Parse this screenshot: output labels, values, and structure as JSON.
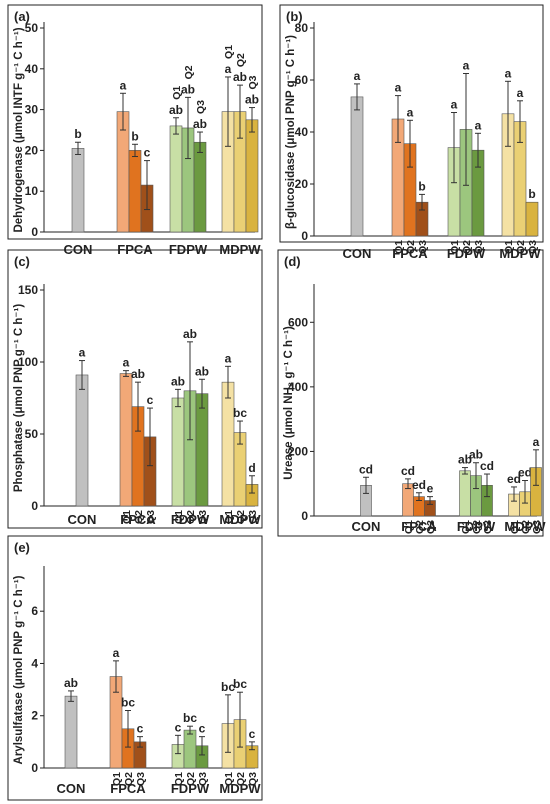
{
  "chart_data": [
    {
      "type": "bar",
      "panel_label": "(a)",
      "ylabel": "Dehydrogenase (μmol INTF g⁻¹ C h⁻¹)",
      "ylim": [
        0,
        50
      ],
      "yticks": [
        0,
        10,
        20,
        30,
        40,
        50
      ],
      "groups": [
        "CON",
        "FPCA",
        "FDPW",
        "MDPW"
      ],
      "quality_labels": [
        "Q1",
        "Q2",
        "Q3"
      ],
      "bars": [
        {
          "group": "CON",
          "level": "",
          "value": 20.5,
          "err": 1.5,
          "letter": "b",
          "color": "#c0c0c0"
        },
        {
          "group": "FPCA",
          "level": "Q1",
          "value": 29.5,
          "err": 4.5,
          "letter": "a",
          "color": "#f2a877"
        },
        {
          "group": "FPCA",
          "level": "Q2",
          "value": 20,
          "err": 1.5,
          "letter": "b",
          "color": "#e0731f"
        },
        {
          "group": "FPCA",
          "level": "Q3",
          "value": 11.5,
          "err": 6,
          "letter": "c",
          "color": "#a0501a"
        },
        {
          "group": "FDPW",
          "level": "Q1",
          "value": 26,
          "err": 2,
          "letter": "ab",
          "color": "#c8dfa5"
        },
        {
          "group": "FDPW",
          "level": "Q2",
          "value": 25.5,
          "err": 7.5,
          "letter": "ab",
          "color": "#9cc67e"
        },
        {
          "group": "FDPW",
          "level": "Q3",
          "value": 22,
          "err": 2.5,
          "letter": "ab",
          "color": "#6b9a40"
        },
        {
          "group": "MDPW",
          "level": "Q1",
          "value": 29.5,
          "err": 8.5,
          "letter": "a",
          "color": "#f4e1a4"
        },
        {
          "group": "MDPW",
          "level": "Q2",
          "value": 29.5,
          "err": 6.5,
          "letter": "ab",
          "color": "#ead074"
        },
        {
          "group": "MDPW",
          "level": "Q3",
          "value": 27.5,
          "err": 3,
          "letter": "ab",
          "color": "#d9b33f"
        }
      ]
    },
    {
      "type": "bar",
      "panel_label": "(b)",
      "ylabel": "β-glucosidase (μmol PNP g⁻¹ C h⁻¹)",
      "ylim": [
        0,
        80
      ],
      "yticks": [
        0,
        20,
        40,
        60,
        80
      ],
      "groups": [
        "CON",
        "FPCA",
        "FDPW",
        "MDPW"
      ],
      "quality_labels": [
        "Q1",
        "Q2",
        "Q3"
      ],
      "bars": [
        {
          "group": "CON",
          "level": "",
          "value": 53.5,
          "err": 5,
          "letter": "a",
          "color": "#c0c0c0"
        },
        {
          "group": "FPCA",
          "level": "Q1",
          "value": 45,
          "err": 9,
          "letter": "a",
          "color": "#f2a877"
        },
        {
          "group": "FPCA",
          "level": "Q2",
          "value": 35.5,
          "err": 9,
          "letter": "a",
          "color": "#e0731f"
        },
        {
          "group": "FPCA",
          "level": "Q3",
          "value": 13,
          "err": 3,
          "letter": "b",
          "color": "#a0501a"
        },
        {
          "group": "FDPW",
          "level": "Q1",
          "value": 34,
          "err": 13.5,
          "letter": "a",
          "color": "#c8dfa5"
        },
        {
          "group": "FDPW",
          "level": "Q2",
          "value": 41,
          "err": 21.5,
          "letter": "a",
          "color": "#9cc67e"
        },
        {
          "group": "FDPW",
          "level": "Q3",
          "value": 33,
          "err": 6.5,
          "letter": "a",
          "color": "#6b9a40"
        },
        {
          "group": "MDPW",
          "level": "Q1",
          "value": 47,
          "err": 12.5,
          "letter": "a",
          "color": "#f4e1a4"
        },
        {
          "group": "MDPW",
          "level": "Q2",
          "value": 44,
          "err": 8,
          "letter": "a",
          "color": "#ead074"
        },
        {
          "group": "MDPW",
          "level": "Q3",
          "value": 13,
          "err": 0,
          "letter": "b",
          "color": "#d9b33f"
        }
      ]
    },
    {
      "type": "bar",
      "panel_label": "(c)",
      "ylabel": "Phosphatase (μmol PNP g⁻¹ C h⁻¹)",
      "ylim": [
        0,
        150
      ],
      "yticks": [
        0,
        50,
        100,
        150
      ],
      "groups": [
        "CON",
        "FPCA",
        "FDPW",
        "MDPW"
      ],
      "quality_labels": [
        "Q1",
        "Q2",
        "Q3"
      ],
      "bars": [
        {
          "group": "CON",
          "level": "",
          "value": 91,
          "err": 10,
          "letter": "a",
          "color": "#c0c0c0"
        },
        {
          "group": "FPCA",
          "level": "Q1",
          "value": 92,
          "err": 2,
          "letter": "a",
          "color": "#f2a877"
        },
        {
          "group": "FPCA",
          "level": "Q2",
          "value": 69,
          "err": 17,
          "letter": "ab",
          "color": "#e0731f"
        },
        {
          "group": "FPCA",
          "level": "Q3",
          "value": 48,
          "err": 20,
          "letter": "c",
          "color": "#a0501a"
        },
        {
          "group": "FDPW",
          "level": "Q1",
          "value": 75,
          "err": 6,
          "letter": "ab",
          "color": "#c8dfa5"
        },
        {
          "group": "FDPW",
          "level": "Q2",
          "value": 80,
          "err": 34,
          "letter": "ab",
          "color": "#9cc67e"
        },
        {
          "group": "FDPW",
          "level": "Q3",
          "value": 78,
          "err": 10,
          "letter": "ab",
          "color": "#6b9a40"
        },
        {
          "group": "MDPW",
          "level": "Q1",
          "value": 86,
          "err": 11,
          "letter": "a",
          "color": "#f4e1a4"
        },
        {
          "group": "MDPW",
          "level": "Q2",
          "value": 51,
          "err": 8,
          "letter": "bc",
          "color": "#ead074"
        },
        {
          "group": "MDPW",
          "level": "Q3",
          "value": 15,
          "err": 6,
          "letter": "d",
          "color": "#d9b33f"
        }
      ]
    },
    {
      "type": "bar",
      "panel_label": "(d)",
      "ylabel": "Urease (μmol NH₃ g⁻¹ C h⁻¹)",
      "ylim": [
        0,
        700
      ],
      "yticks": [
        0,
        200,
        400,
        600
      ],
      "groups": [
        "CON",
        "FPCA",
        "FDPW",
        "MDPW"
      ],
      "quality_labels": [
        "Q1",
        "Q2",
        "Q3"
      ],
      "bars": [
        {
          "group": "CON",
          "level": "",
          "value": 95,
          "err": 25,
          "letter": "cd",
          "color": "#c0c0c0"
        },
        {
          "group": "FPCA",
          "level": "Q1",
          "value": 100,
          "err": 15,
          "letter": "cd",
          "color": "#f2a877"
        },
        {
          "group": "FPCA",
          "level": "Q2",
          "value": 60,
          "err": 12,
          "letter": "ed",
          "color": "#e0731f"
        },
        {
          "group": "FPCA",
          "level": "Q3",
          "value": 48,
          "err": 12,
          "letter": "e",
          "color": "#a0501a"
        },
        {
          "group": "FDPW",
          "level": "Q1",
          "value": 140,
          "err": 10,
          "letter": "ab",
          "color": "#c8dfa5"
        },
        {
          "group": "FDPW",
          "level": "Q2",
          "value": 125,
          "err": 40,
          "letter": "ab",
          "color": "#9cc67e"
        },
        {
          "group": "FDPW",
          "level": "Q3",
          "value": 95,
          "err": 35,
          "letter": "cd",
          "color": "#6b9a40"
        },
        {
          "group": "MDPW",
          "level": "Q1",
          "value": 68,
          "err": 22,
          "letter": "ed",
          "color": "#f4e1a4"
        },
        {
          "group": "MDPW",
          "level": "Q2",
          "value": 75,
          "err": 35,
          "letter": "ed",
          "color": "#ead074"
        },
        {
          "group": "MDPW",
          "level": "Q3",
          "value": 150,
          "err": 55,
          "letter": "a",
          "color": "#d9b33f"
        }
      ]
    },
    {
      "type": "bar",
      "panel_label": "(e)",
      "ylabel": "Arylsulfatase (μmol PNP g⁻¹ C h⁻¹)",
      "ylim": [
        0,
        7.5
      ],
      "yticks": [
        0,
        2,
        4,
        6
      ],
      "groups": [
        "CON",
        "FPCA",
        "FDPW",
        "MDPW"
      ],
      "quality_labels": [
        "Q1",
        "Q2",
        "Q3"
      ],
      "bars": [
        {
          "group": "CON",
          "level": "",
          "value": 2.75,
          "err": 0.2,
          "letter": "ab",
          "color": "#c0c0c0"
        },
        {
          "group": "FPCA",
          "level": "Q1",
          "value": 3.5,
          "err": 0.6,
          "letter": "a",
          "color": "#f2a877"
        },
        {
          "group": "FPCA",
          "level": "Q2",
          "value": 1.5,
          "err": 0.7,
          "letter": "bc",
          "color": "#e0731f"
        },
        {
          "group": "FPCA",
          "level": "Q3",
          "value": 1.0,
          "err": 0.2,
          "letter": "c",
          "color": "#a0501a"
        },
        {
          "group": "FDPW",
          "level": "Q1",
          "value": 0.9,
          "err": 0.35,
          "letter": "c",
          "color": "#c8dfa5"
        },
        {
          "group": "FDPW",
          "level": "Q2",
          "value": 1.45,
          "err": 0.15,
          "letter": "bc",
          "color": "#9cc67e"
        },
        {
          "group": "FDPW",
          "level": "Q3",
          "value": 0.85,
          "err": 0.35,
          "letter": "c",
          "color": "#6b9a40"
        },
        {
          "group": "MDPW",
          "level": "Q1",
          "value": 1.7,
          "err": 1.1,
          "letter": "bc",
          "color": "#f4e1a4"
        },
        {
          "group": "MDPW",
          "level": "Q2",
          "value": 1.85,
          "err": 1.05,
          "letter": "bc",
          "color": "#ead074"
        },
        {
          "group": "MDPW",
          "level": "Q3",
          "value": 0.85,
          "err": 0.15,
          "letter": "c",
          "color": "#d9b33f"
        }
      ]
    }
  ]
}
